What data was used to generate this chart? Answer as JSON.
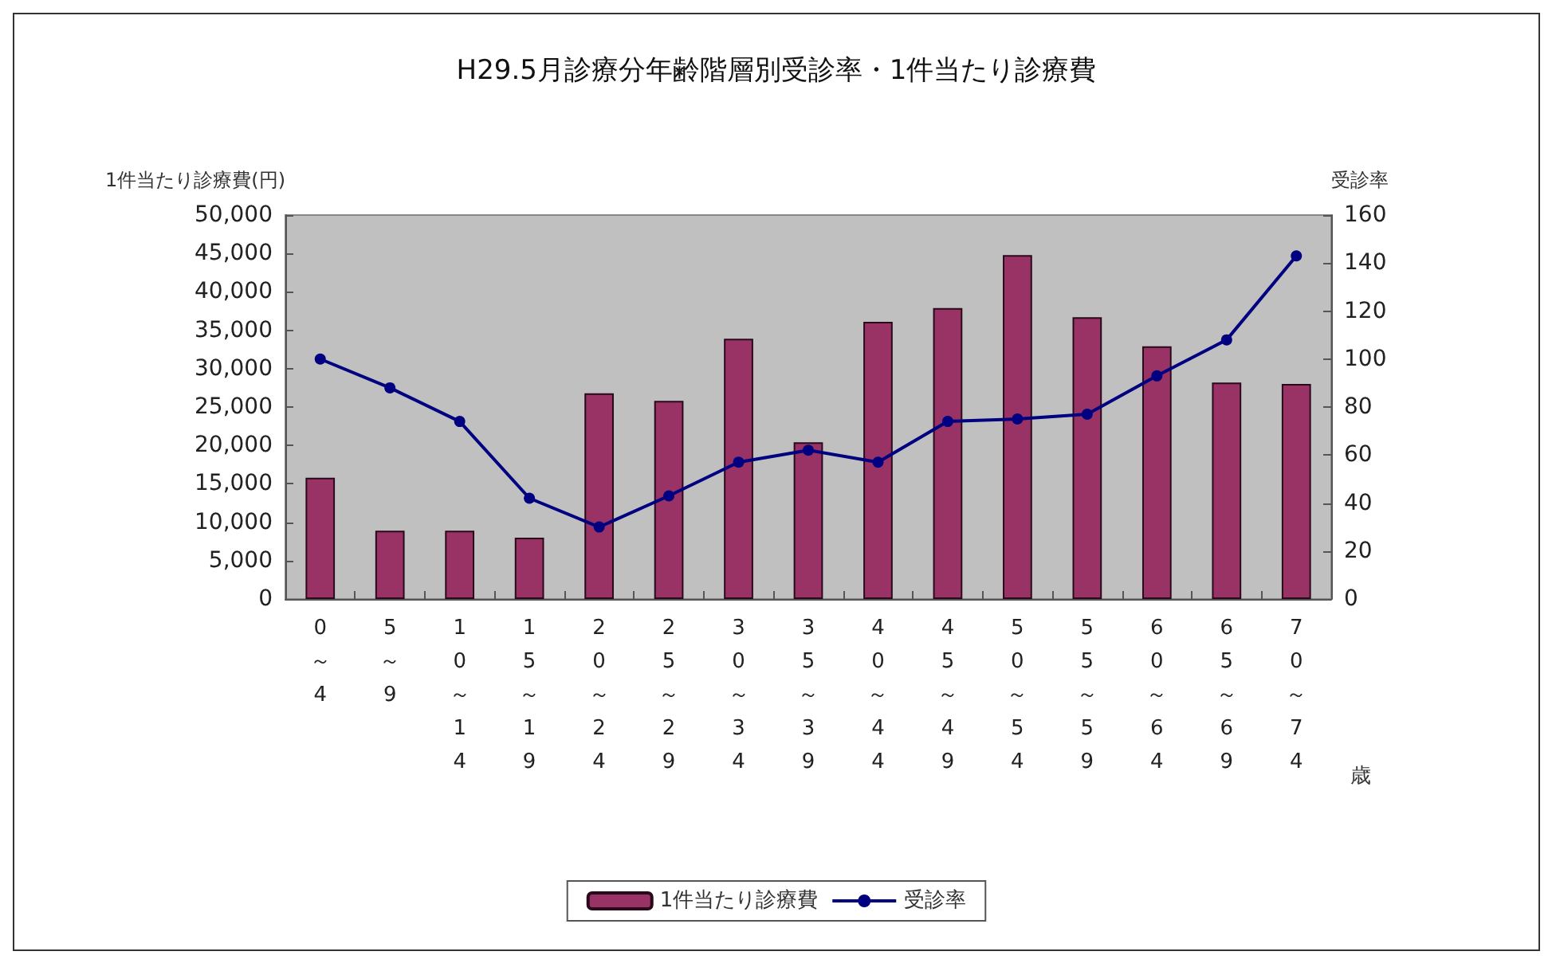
{
  "chart_data": {
    "type": "bar",
    "title": "H29.5月診療分年齢階層別受診率・1件当たり診療費",
    "categories": [
      "0～4",
      "5～9",
      "10～14",
      "15～19",
      "20～24",
      "25～29",
      "30～34",
      "35～39",
      "40～44",
      "45～49",
      "50～54",
      "55～59",
      "60～64",
      "65～69",
      "70～74"
    ],
    "series": [
      {
        "name": "1件当たり診療費",
        "color": "#993366",
        "values": [
          15800,
          8900,
          8900,
          8000,
          26800,
          25800,
          33900,
          20400,
          36100,
          37900,
          44800,
          36700,
          32900,
          28200,
          28000
        ]
      },
      {
        "name": "受診率",
        "type": "line",
        "axis": "y2",
        "color": "#000080",
        "values": [
          100,
          88,
          74,
          42,
          30,
          43,
          57,
          62,
          57,
          74,
          75,
          77,
          93,
          108,
          143
        ]
      }
    ],
    "xlabel": "歳",
    "ylabel": "1件当たり診療費(円)",
    "y2label": "受診率",
    "ylim": [
      0,
      50000
    ],
    "yticks": [
      0,
      {
        "value": 5000,
        "label": "5,000"
      },
      {
        "value": 10000,
        "label": "10,000"
      },
      {
        "value": 15000,
        "label": "15,000"
      },
      {
        "value": 20000,
        "label": "20,000"
      },
      {
        "value": 25000,
        "label": "25,000"
      },
      {
        "value": 30000,
        "label": "30,000"
      },
      {
        "value": 35000,
        "label": "35,000"
      },
      {
        "value": 40000,
        "label": "40,000"
      },
      {
        "value": 45000,
        "label": "45,000"
      },
      {
        "value": 50000,
        "label": "50,000"
      }
    ],
    "y2lim": [
      0,
      160
    ],
    "y2ticks": [
      0,
      20,
      40,
      60,
      80,
      100,
      120,
      140,
      160
    ],
    "grid": false,
    "legend": "bottom",
    "marker": "circle",
    "line_style": "solid"
  }
}
